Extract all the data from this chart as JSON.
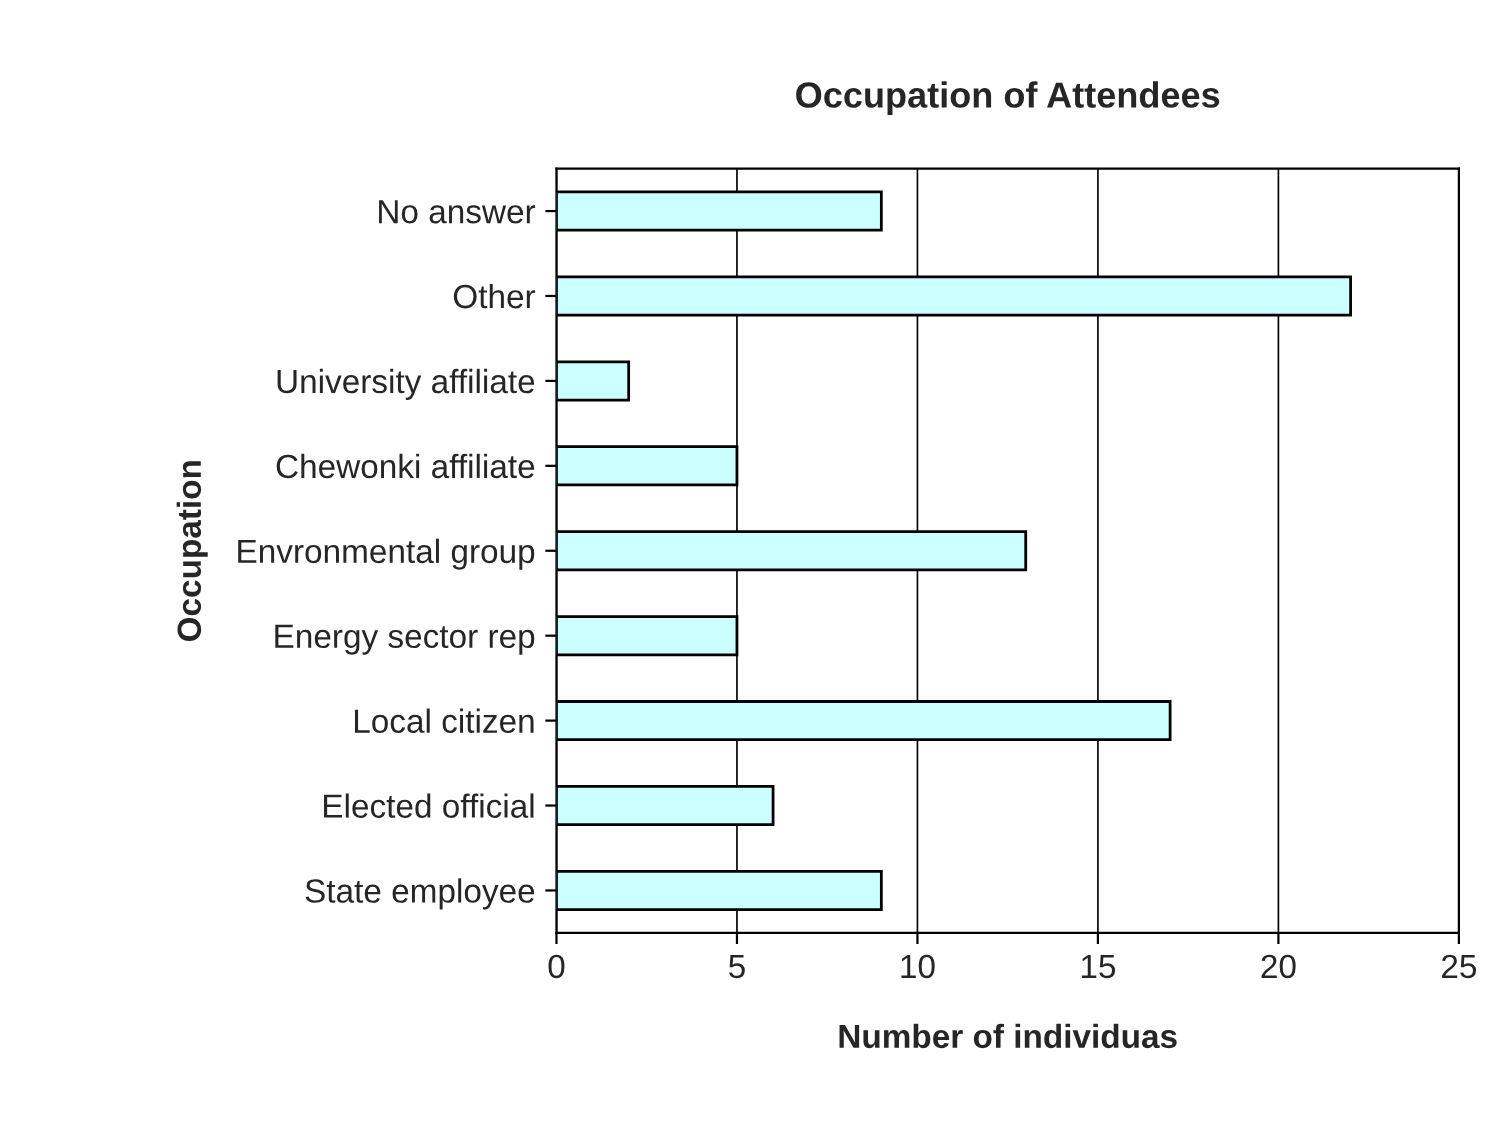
{
  "chart_data": {
    "type": "bar",
    "orientation": "horizontal",
    "title": "Occupation of Attendees",
    "xlabel": "Number of individuas",
    "ylabel": "Occupation",
    "categories": [
      "No answer",
      "Other",
      "University affiliate",
      "Chewonki affiliate",
      "Envronmental group",
      "Energy sector rep",
      "Local citizen",
      "Elected official",
      "State employee"
    ],
    "values": [
      9,
      22,
      2,
      5,
      13,
      5,
      17,
      6,
      9
    ],
    "color": "#ccffff",
    "xlim": [
      0,
      25
    ],
    "xticks": [
      0,
      5,
      10,
      15,
      20,
      25
    ],
    "grid": "x"
  }
}
